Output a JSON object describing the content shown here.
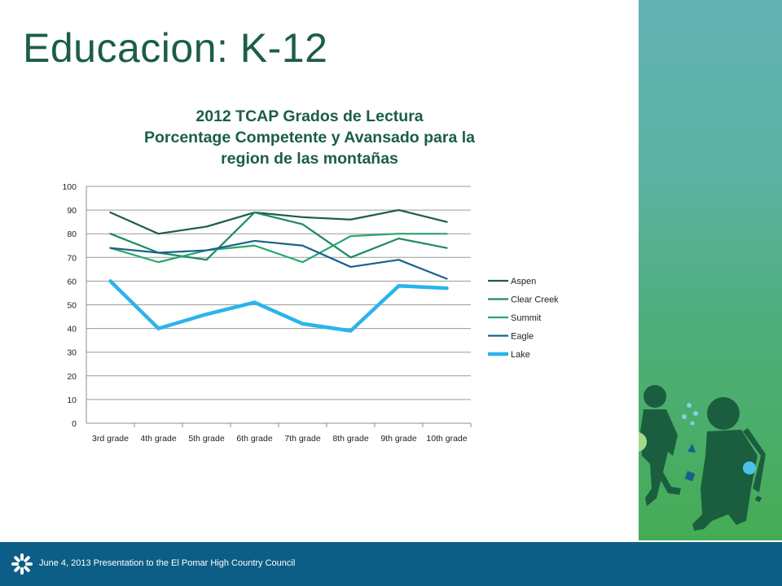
{
  "slide": {
    "title": "Educacion: K-12",
    "footer": "June 4, 2013 Presentation to  the El Pomar High Country Council"
  },
  "icons": {
    "footer_logo": "sunburst-icon",
    "decoration": "children-walking-illustration"
  },
  "colors": {
    "title": "#1b5e46",
    "panel": "#4fae7c",
    "footer": "#0d5e87"
  },
  "chart_data": {
    "type": "line",
    "title": [
      "2012 TCAP Grados de Lectura",
      "Porcentage Competente y Avansado para la",
      "region de las montañas"
    ],
    "xlabel": "",
    "ylabel": "",
    "categories": [
      "3rd grade",
      "4th grade",
      "5th grade",
      "6th grade",
      "7th grade",
      "8th grade",
      "9th grade",
      "10th grade"
    ],
    "ylim": [
      0,
      100
    ],
    "yticks": [
      0,
      10,
      20,
      30,
      40,
      50,
      60,
      70,
      80,
      90,
      100
    ],
    "grid": true,
    "legend": "right",
    "series": [
      {
        "name": "Aspen",
        "color": "#1f5b47",
        "values": [
          89,
          80,
          83,
          89,
          87,
          86,
          90,
          85
        ]
      },
      {
        "name": "Clear Creek",
        "color": "#1d8a5e",
        "values": [
          80,
          72,
          69,
          89,
          84,
          70,
          78,
          74
        ]
      },
      {
        "name": "Summit",
        "color": "#27a86b",
        "values": [
          74,
          68,
          73,
          75,
          68,
          79,
          80,
          80
        ]
      },
      {
        "name": "Eagle",
        "color": "#17628c",
        "values": [
          74,
          72,
          73,
          77,
          75,
          66,
          69,
          61
        ]
      },
      {
        "name": "Lake",
        "color": "#2ab4ec",
        "values": [
          60,
          40,
          46,
          51,
          42,
          39,
          58,
          57
        ]
      }
    ]
  }
}
